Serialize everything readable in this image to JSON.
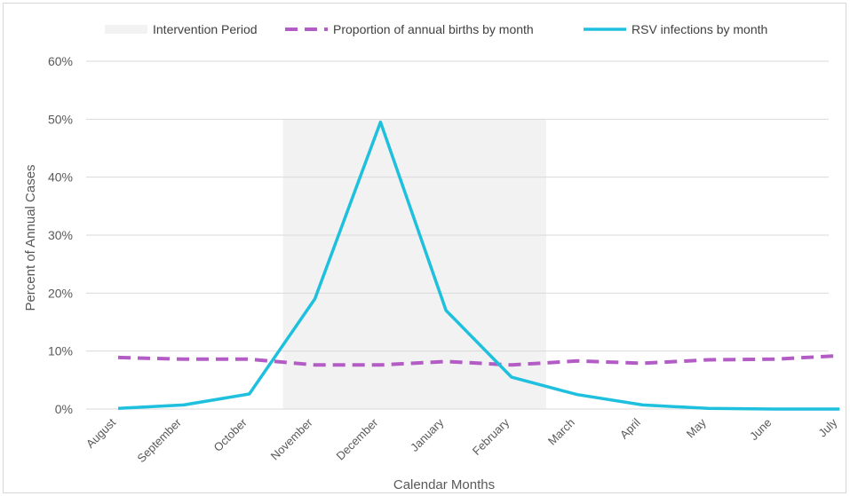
{
  "chart_data": {
    "type": "line",
    "title": "",
    "xlabel": "Calendar Months",
    "ylabel": "Percent of Annual Cases",
    "ylim": [
      0,
      60
    ],
    "y_ticks": [
      "0%",
      "10%",
      "20%",
      "30%",
      "40%",
      "50%",
      "60%"
    ],
    "categories": [
      "August",
      "September",
      "October",
      "November",
      "December",
      "January",
      "February",
      "March",
      "April",
      "May",
      "June",
      "July"
    ],
    "shaded_region": {
      "label": "Intervention Period",
      "start": "November",
      "end": "February",
      "color": "#f2f2f2"
    },
    "series": [
      {
        "name": "Proportion of annual births by month",
        "style": "dashed",
        "color": "#b45cc6",
        "values": [
          8.9,
          8.6,
          8.6,
          7.6,
          7.6,
          8.2,
          7.6,
          8.3,
          7.9,
          8.5,
          8.6,
          9.2
        ]
      },
      {
        "name": "RSV infections by month",
        "style": "solid",
        "color": "#1ec0dd",
        "values": [
          0.1,
          0.7,
          2.6,
          19.0,
          49.5,
          17.0,
          5.5,
          2.5,
          0.7,
          0.1,
          0.0,
          0.0
        ]
      }
    ],
    "grid": "horizontal",
    "legend_position": "top"
  }
}
